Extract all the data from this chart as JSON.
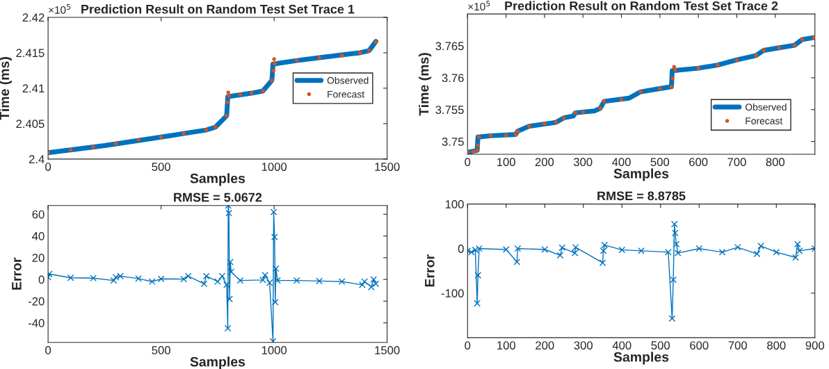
{
  "chart_data": [
    {
      "type": "line",
      "title": "Prediction Result on Random Test Set Trace 1",
      "xlabel": "Samples",
      "ylabel": "Time (ms)",
      "annotations": [
        "×10$^{5}$"
      ],
      "xlim": [
        0,
        1500
      ],
      "xticks": [
        0,
        500,
        1000,
        1500
      ],
      "ylim": [
        2.4,
        2.42
      ],
      "yticks": [
        2.4,
        2.405,
        2.41,
        2.415,
        2.42
      ],
      "legend": "right",
      "grid": false,
      "series": [
        {
          "name": "Observed",
          "color": "#0072bd",
          "x": [
            0,
            250,
            500,
            600,
            700,
            740,
            790,
            795,
            900,
            950,
            990,
            995,
            1100,
            1200,
            1380,
            1420,
            1450
          ],
          "values": [
            2.4009,
            2.4019,
            2.4031,
            2.4036,
            2.4041,
            2.4045,
            2.4061,
            2.4088,
            2.4093,
            2.4096,
            2.4111,
            2.4134,
            2.4139,
            2.4143,
            2.415,
            2.4153,
            2.4166
          ]
        },
        {
          "name": "Forecast",
          "type": "scatter",
          "color": "#d95319",
          "x": [
            0,
            100,
            200,
            300,
            400,
            500,
            600,
            700,
            740,
            790,
            793,
            797,
            800,
            850,
            900,
            950,
            990,
            997,
            1000,
            1003,
            1100,
            1200,
            1300,
            1380,
            1420,
            1450
          ],
          "values": [
            2.4009,
            2.4013,
            2.4017,
            2.4022,
            2.4027,
            2.4031,
            2.4036,
            2.4041,
            2.4045,
            2.4061,
            2.408,
            2.4094,
            2.4089,
            2.4091,
            2.4093,
            2.4096,
            2.4111,
            2.4125,
            2.4141,
            2.4135,
            2.4139,
            2.4143,
            2.4146,
            2.415,
            2.4153,
            2.4165
          ]
        }
      ]
    },
    {
      "type": "line",
      "title": "Prediction Result on Random Test Set Trace 2",
      "xlabel": "Samples",
      "ylabel": "Time (ms)",
      "annotations": [
        "×10$^{5}$"
      ],
      "xlim": [
        0,
        903
      ],
      "xticks": [
        0,
        100,
        200,
        300,
        400,
        500,
        600,
        700,
        800
      ],
      "ylim": [
        3.748,
        3.77
      ],
      "yticks": [
        3.75,
        3.755,
        3.76,
        3.765
      ],
      "legend": "bottom right",
      "grid": false,
      "series": [
        {
          "name": "Observed",
          "color": "#0072bd",
          "x": [
            0,
            25,
            27,
            60,
            125,
            130,
            160,
            230,
            250,
            275,
            280,
            330,
            345,
            355,
            420,
            450,
            500,
            530,
            532,
            600,
            650,
            700,
            750,
            770,
            810,
            850,
            870,
            900
          ],
          "values": [
            3.7483,
            3.7486,
            3.7507,
            3.7509,
            3.7511,
            3.7516,
            3.7524,
            3.753,
            3.7537,
            3.754,
            3.7545,
            3.7548,
            3.7552,
            3.7563,
            3.7568,
            3.7578,
            3.7583,
            3.7586,
            3.7611,
            3.7615,
            3.762,
            3.7628,
            3.7635,
            3.7643,
            3.7647,
            3.7651,
            3.766,
            3.7663
          ]
        },
        {
          "name": "Forecast",
          "type": "scatter",
          "color": "#d95319",
          "x": [
            0,
            15,
            25,
            27,
            30,
            60,
            100,
            125,
            130,
            160,
            200,
            230,
            250,
            280,
            300,
            345,
            355,
            400,
            450,
            500,
            530,
            533,
            537,
            540,
            600,
            650,
            700,
            750,
            770,
            810,
            850,
            870,
            900
          ],
          "values": [
            3.7483,
            3.7484,
            3.7486,
            3.7494,
            3.7507,
            3.7509,
            3.751,
            3.7511,
            3.7516,
            3.7524,
            3.7528,
            3.753,
            3.7537,
            3.7545,
            3.7546,
            3.7552,
            3.7563,
            3.7566,
            3.7578,
            3.7583,
            3.7586,
            3.7599,
            3.7617,
            3.7612,
            3.7615,
            3.762,
            3.7628,
            3.7635,
            3.7643,
            3.7647,
            3.7651,
            3.766,
            3.7663
          ]
        }
      ]
    },
    {
      "type": "line",
      "title": "RMSE = 5.0672",
      "xlabel": "Samples",
      "ylabel": "Error",
      "marker": "cross",
      "xlim": [
        0,
        1500
      ],
      "xticks": [
        0,
        500,
        1000,
        1500
      ],
      "ylim": [
        -58,
        68
      ],
      "yticks": [
        -40,
        -20,
        0,
        20,
        40,
        60
      ],
      "grid": false,
      "series": [
        {
          "color": "#0072bd",
          "x": [
            0,
            5,
            100,
            200,
            290,
            300,
            320,
            400,
            460,
            500,
            600,
            620,
            690,
            700,
            750,
            770,
            790,
            795,
            797,
            800,
            803,
            806,
            810,
            850,
            950,
            960,
            980,
            995,
            998,
            1002,
            1005,
            1008,
            1015,
            1100,
            1200,
            1300,
            1390,
            1400,
            1430,
            1440,
            1450
          ],
          "values": [
            2,
            5,
            1.5,
            1.2,
            -1,
            2,
            3,
            0.8,
            -2,
            0.5,
            0.3,
            3,
            -4,
            3,
            -2,
            3,
            -5,
            -45,
            68,
            61,
            -18,
            16,
            7,
            -1,
            -0.5,
            4,
            -3,
            -57,
            62,
            39,
            -21,
            10,
            -1,
            -1,
            -1.5,
            -2,
            -5,
            -2,
            -7,
            0,
            -4
          ]
        }
      ]
    },
    {
      "type": "line",
      "title": "RMSE = 8.8785",
      "xlabel": "Samples",
      "ylabel": "Error",
      "marker": "cross",
      "xlim": [
        0,
        900
      ],
      "xticks": [
        0,
        100,
        200,
        300,
        400,
        500,
        600,
        700,
        800,
        900
      ],
      "ylim": [
        -200,
        100
      ],
      "yticks": [
        -100,
        0,
        100
      ],
      "grid": false,
      "series": [
        {
          "color": "#0072bd",
          "x": [
            0,
            10,
            20,
            25,
            27,
            30,
            100,
            128,
            130,
            200,
            240,
            245,
            278,
            280,
            350,
            352,
            355,
            400,
            450,
            520,
            530,
            533,
            536,
            538,
            541,
            545,
            600,
            660,
            700,
            750,
            760,
            800,
            850,
            855,
            860,
            900
          ],
          "values": [
            -5,
            -8,
            -3,
            -123,
            -60,
            0,
            -2,
            -30,
            0,
            -2,
            -15,
            2,
            -10,
            3,
            -32,
            -5,
            8,
            -3,
            -5,
            -8,
            -157,
            -70,
            55,
            35,
            10,
            -10,
            0,
            -8,
            3,
            -12,
            6,
            -8,
            -20,
            10,
            -5,
            0
          ]
        }
      ]
    }
  ]
}
